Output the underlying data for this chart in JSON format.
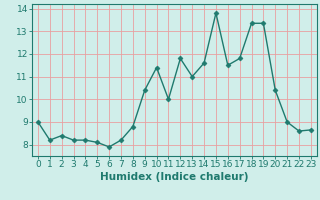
{
  "xlabel": "Humidex (Indice chaleur)",
  "x": [
    0,
    1,
    2,
    3,
    4,
    5,
    6,
    7,
    8,
    9,
    10,
    11,
    12,
    13,
    14,
    15,
    16,
    17,
    18,
    19,
    20,
    21,
    22,
    23
  ],
  "y": [
    9.0,
    8.2,
    8.4,
    8.2,
    8.2,
    8.1,
    7.9,
    8.2,
    8.8,
    10.4,
    11.4,
    10.0,
    11.8,
    11.0,
    11.6,
    13.8,
    11.5,
    11.8,
    13.35,
    13.35,
    10.4,
    9.0,
    8.6,
    8.65
  ],
  "line_color": "#1f7a6e",
  "marker": "D",
  "marker_size": 2.5,
  "bg_color": "#d0eeea",
  "grid_color": "#e8a0a0",
  "axis_color": "#1f7a6e",
  "ylim": [
    7.5,
    14.2
  ],
  "xlim": [
    -0.5,
    23.5
  ],
  "yticks": [
    8,
    9,
    10,
    11,
    12,
    13,
    14
  ],
  "xticks": [
    0,
    1,
    2,
    3,
    4,
    5,
    6,
    7,
    8,
    9,
    10,
    11,
    12,
    13,
    14,
    15,
    16,
    17,
    18,
    19,
    20,
    21,
    22,
    23
  ],
  "tick_fontsize": 6.5,
  "label_fontsize": 7.5
}
